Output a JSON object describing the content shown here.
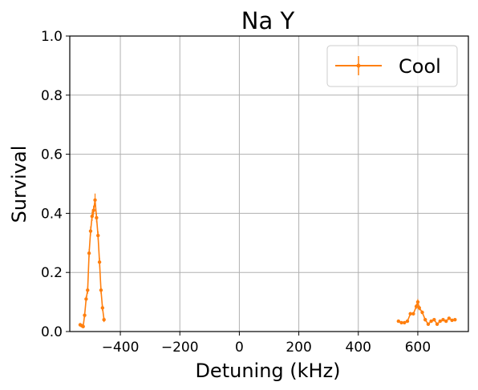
{
  "chart_data": {
    "type": "line",
    "title": "Na Y",
    "xlabel": "Detuning (kHz)",
    "ylabel": "Survival",
    "xlim": [
      -570,
      770
    ],
    "ylim": [
      0.0,
      1.0
    ],
    "x_ticks": [
      -400,
      -200,
      0,
      200,
      400,
      600
    ],
    "x_tick_labels": [
      "−400",
      "−200",
      "0",
      "200",
      "400",
      "600"
    ],
    "y_ticks": [
      0.0,
      0.2,
      0.4,
      0.6,
      0.8,
      1.0
    ],
    "y_tick_labels": [
      "0.0",
      "0.2",
      "0.4",
      "0.6",
      "0.8",
      "1.0"
    ],
    "grid": true,
    "legend_position": "top-right",
    "series": [
      {
        "name": "Cool",
        "color": "#ff7f0e",
        "segments": [
          {
            "x": [
              -535,
              -530,
              -525,
              -520,
              -515,
              -510,
              -505,
              -500,
              -495,
              -490,
              -485,
              -480,
              -475,
              -470,
              -465,
              -460,
              -455
            ],
            "y": [
              0.023,
              0.02,
              0.017,
              0.055,
              0.11,
              0.14,
              0.265,
              0.34,
              0.39,
              0.41,
              0.445,
              0.385,
              0.325,
              0.235,
              0.14,
              0.08,
              0.04
            ],
            "err": [
              0.006,
              0.006,
              0.006,
              0.008,
              0.01,
              0.012,
              0.014,
              0.016,
              0.016,
              0.016,
              0.022,
              0.016,
              0.014,
              0.014,
              0.012,
              0.01,
              0.008
            ]
          },
          {
            "x": [
              535,
              545,
              555,
              565,
              575,
              585,
              595,
              600,
              605,
              615,
              625,
              635,
              645,
              655,
              665,
              675,
              685,
              695,
              705,
              715,
              725
            ],
            "y": [
              0.035,
              0.03,
              0.03,
              0.035,
              0.06,
              0.06,
              0.085,
              0.1,
              0.08,
              0.065,
              0.04,
              0.025,
              0.035,
              0.04,
              0.025,
              0.035,
              0.04,
              0.035,
              0.045,
              0.038,
              0.04
            ],
            "err": [
              0.005,
              0.005,
              0.005,
              0.005,
              0.006,
              0.006,
              0.008,
              0.01,
              0.008,
              0.006,
              0.006,
              0.005,
              0.005,
              0.005,
              0.005,
              0.005,
              0.005,
              0.005,
              0.005,
              0.005,
              0.005
            ]
          }
        ]
      }
    ]
  }
}
